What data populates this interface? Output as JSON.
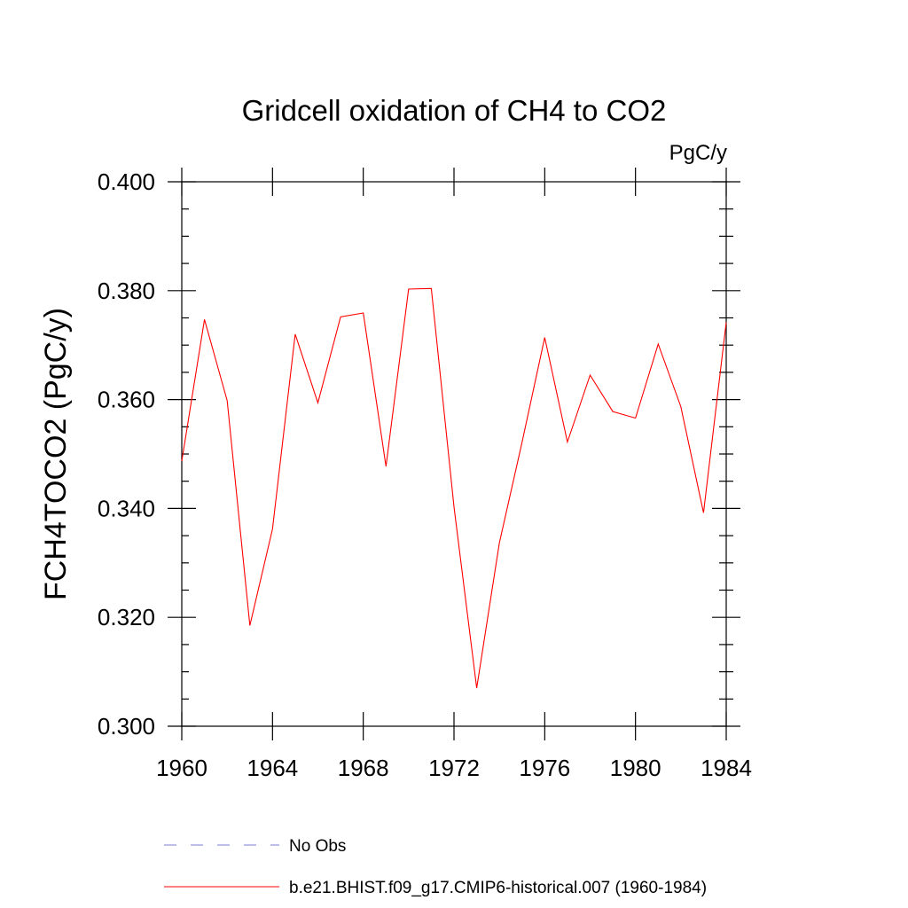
{
  "chart_data": {
    "type": "line",
    "title": "Gridcell oxidation of CH4 to CO2",
    "units": "PgC/y",
    "ylabel": "FCH4TOCO2  (PgC/y)",
    "xlabel": "",
    "xlim": [
      1960,
      1984
    ],
    "ylim": [
      0.3,
      0.4
    ],
    "x_ticks": [
      1960,
      1964,
      1968,
      1972,
      1976,
      1980,
      1984
    ],
    "x_tick_labels": [
      "1960",
      "1964",
      "1968",
      "1972",
      "1976",
      "1980",
      "1984"
    ],
    "y_ticks": [
      0.3,
      0.32,
      0.34,
      0.36,
      0.38,
      0.4
    ],
    "y_tick_labels": [
      "0.300",
      "0.320",
      "0.340",
      "0.360",
      "0.380",
      "0.400"
    ],
    "grid": false,
    "legend_position": "bottom",
    "x": [
      1960,
      1961,
      1962,
      1963,
      1964,
      1965,
      1966,
      1967,
      1968,
      1969,
      1970,
      1971,
      1972,
      1973,
      1974,
      1975,
      1976,
      1977,
      1978,
      1979,
      1980,
      1981,
      1982,
      1983,
      1984
    ],
    "series": [
      {
        "name": "b.e21.BHIST.f09_g17.CMIP6-historical.007 (1960-1984)",
        "color": "#ff0000",
        "style": "solid",
        "values": [
          0.3487,
          0.3747,
          0.3598,
          0.3185,
          0.3362,
          0.372,
          0.3594,
          0.3752,
          0.3759,
          0.3477,
          0.3803,
          0.3804,
          0.3403,
          0.307,
          0.3337,
          0.3522,
          0.3714,
          0.3522,
          0.3645,
          0.3578,
          0.3566,
          0.3702,
          0.3587,
          0.3392,
          0.3742
        ]
      }
    ],
    "legend": [
      {
        "label": "No Obs",
        "color": "#7b7bd6",
        "style": "dashed"
      },
      {
        "label": "b.e21.BHIST.f09_g17.CMIP6-historical.007 (1960-1984)",
        "color": "#ff0000",
        "style": "solid"
      }
    ]
  }
}
